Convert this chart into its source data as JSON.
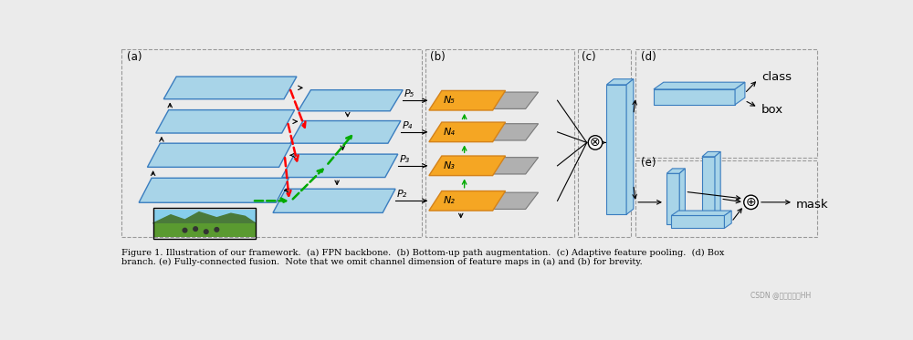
{
  "bg_color": "#ebebeb",
  "blue_face": "#a8d4e8",
  "blue_edge": "#3a7dbf",
  "orange_face": "#f5a623",
  "orange_edge": "#d4821a",
  "gray_face": "#b0b0b0",
  "gray_edge": "#787878",
  "caption": "Figure 1. Illustration of our framework.  (a) FPN backbone.  (b) Bottom-up path augmentation.  (c) Adaptive feature pooling.  (d) Box\nbranch. (e) Fully-connected fusion.  Note that we omit channel dimension of feature maps in (a) and (b) for brevity.",
  "watermark": "CSDN @一朵小红花HH",
  "label_a": "(a)",
  "label_b": "(b)",
  "label_c": "(c)",
  "label_d": "(d)",
  "label_e": "(e)",
  "text_class": "class",
  "text_box": "box",
  "text_mask": "mask"
}
